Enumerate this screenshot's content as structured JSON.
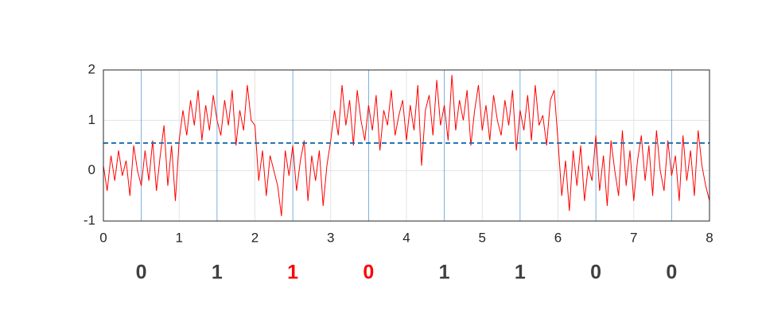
{
  "chart_data": {
    "type": "line",
    "x": [
      0,
      0.05,
      0.1,
      0.15,
      0.2,
      0.25,
      0.3,
      0.35,
      0.4,
      0.45,
      0.5,
      0.55,
      0.6,
      0.65,
      0.7,
      0.75,
      0.8,
      0.85,
      0.9,
      0.95,
      1,
      1.05,
      1.1,
      1.15,
      1.2,
      1.25,
      1.3,
      1.35,
      1.4,
      1.45,
      1.5,
      1.55,
      1.6,
      1.65,
      1.7,
      1.75,
      1.8,
      1.85,
      1.9,
      1.95,
      2,
      2.05,
      2.1,
      2.15,
      2.2,
      2.25,
      2.3,
      2.35,
      2.4,
      2.45,
      2.5,
      2.55,
      2.6,
      2.65,
      2.7,
      2.75,
      2.8,
      2.85,
      2.9,
      2.95,
      3,
      3.05,
      3.1,
      3.15,
      3.2,
      3.25,
      3.3,
      3.35,
      3.4,
      3.45,
      3.5,
      3.55,
      3.6,
      3.65,
      3.7,
      3.75,
      3.8,
      3.85,
      3.9,
      3.95,
      4,
      4.05,
      4.1,
      4.15,
      4.2,
      4.25,
      4.3,
      4.35,
      4.4,
      4.45,
      4.5,
      4.55,
      4.6,
      4.65,
      4.7,
      4.75,
      4.8,
      4.85,
      4.9,
      4.95,
      5,
      5.05,
      5.1,
      5.15,
      5.2,
      5.25,
      5.3,
      5.35,
      5.4,
      5.45,
      5.5,
      5.55,
      5.6,
      5.65,
      5.7,
      5.75,
      5.8,
      5.85,
      5.9,
      5.95,
      6,
      6.05,
      6.1,
      6.15,
      6.2,
      6.25,
      6.3,
      6.35,
      6.4,
      6.45,
      6.5,
      6.55,
      6.6,
      6.65,
      6.7,
      6.75,
      6.8,
      6.85,
      6.9,
      6.95,
      7,
      7.05,
      7.1,
      7.15,
      7.2,
      7.25,
      7.3,
      7.35,
      7.4,
      7.45,
      7.5,
      7.55,
      7.6,
      7.65,
      7.7,
      7.75,
      7.8,
      7.85,
      7.9,
      7.95,
      8
    ],
    "series": [
      {
        "color": "#ff0000",
        "values": [
          0.1,
          -0.4,
          0.3,
          -0.2,
          0.4,
          -0.1,
          0.2,
          -0.5,
          0.5,
          0.0,
          -0.3,
          0.4,
          -0.2,
          0.6,
          -0.4,
          0.3,
          0.9,
          -0.3,
          0.5,
          -0.6,
          0.6,
          1.2,
          0.7,
          1.4,
          0.9,
          1.6,
          0.6,
          1.3,
          0.8,
          1.5,
          1.0,
          0.7,
          1.4,
          0.9,
          1.6,
          0.5,
          1.2,
          0.8,
          1.7,
          1.0,
          0.9,
          -0.2,
          0.4,
          -0.5,
          0.3,
          0.0,
          -0.3,
          -0.9,
          0.4,
          -0.1,
          0.5,
          -0.4,
          0.2,
          0.6,
          -0.6,
          0.3,
          -0.2,
          0.4,
          -0.7,
          0.1,
          0.6,
          1.2,
          0.7,
          1.7,
          0.9,
          1.4,
          0.5,
          1.6,
          1.0,
          0.6,
          1.3,
          0.8,
          1.5,
          0.4,
          1.2,
          0.9,
          1.6,
          0.7,
          1.1,
          1.4,
          0.6,
          1.3,
          0.8,
          1.7,
          0.1,
          1.2,
          1.5,
          0.7,
          1.8,
          0.9,
          1.3,
          0.6,
          1.9,
          0.8,
          1.4,
          1.0,
          1.6,
          0.5,
          1.2,
          1.7,
          0.8,
          1.3,
          0.6,
          1.5,
          1.0,
          0.7,
          1.4,
          0.9,
          1.6,
          0.4,
          1.2,
          0.8,
          1.5,
          0.6,
          1.7,
          0.9,
          1.1,
          0.5,
          1.4,
          1.6,
          0.6,
          -0.5,
          0.2,
          -0.8,
          0.4,
          -0.3,
          0.5,
          -0.6,
          0.1,
          -0.2,
          0.7,
          -0.4,
          0.3,
          -0.7,
          0.6,
          0.0,
          -0.5,
          0.8,
          -0.3,
          0.4,
          -0.6,
          0.2,
          0.7,
          -0.2,
          0.5,
          -0.5,
          0.8,
          0.0,
          -0.4,
          0.6,
          -0.1,
          0.3,
          -0.6,
          0.7,
          -0.2,
          0.4,
          -0.5,
          0.8,
          0.1,
          -0.3,
          -0.6
        ]
      }
    ],
    "threshold": {
      "value": 0.55,
      "color": "#1f6fb4"
    },
    "markers": {
      "values": [
        0.5,
        1.5,
        2.5,
        3.5,
        4.5,
        5.5,
        6.5,
        7.5
      ],
      "color": "#5b9bd5"
    },
    "bits": [
      {
        "label": "0",
        "color": "#404040"
      },
      {
        "label": "1",
        "color": "#404040"
      },
      {
        "label": "1",
        "color": "#ff0000"
      },
      {
        "label": "0",
        "color": "#ff0000"
      },
      {
        "label": "1",
        "color": "#404040"
      },
      {
        "label": "1",
        "color": "#404040"
      },
      {
        "label": "0",
        "color": "#404040"
      },
      {
        "label": "0",
        "color": "#404040"
      }
    ],
    "xlim": [
      0,
      8
    ],
    "xticks": [
      0,
      1,
      2,
      3,
      4,
      5,
      6,
      7,
      8
    ],
    "ylim": [
      -1,
      2
    ],
    "yticks": [
      -1,
      0,
      1,
      2
    ],
    "grid": true
  }
}
